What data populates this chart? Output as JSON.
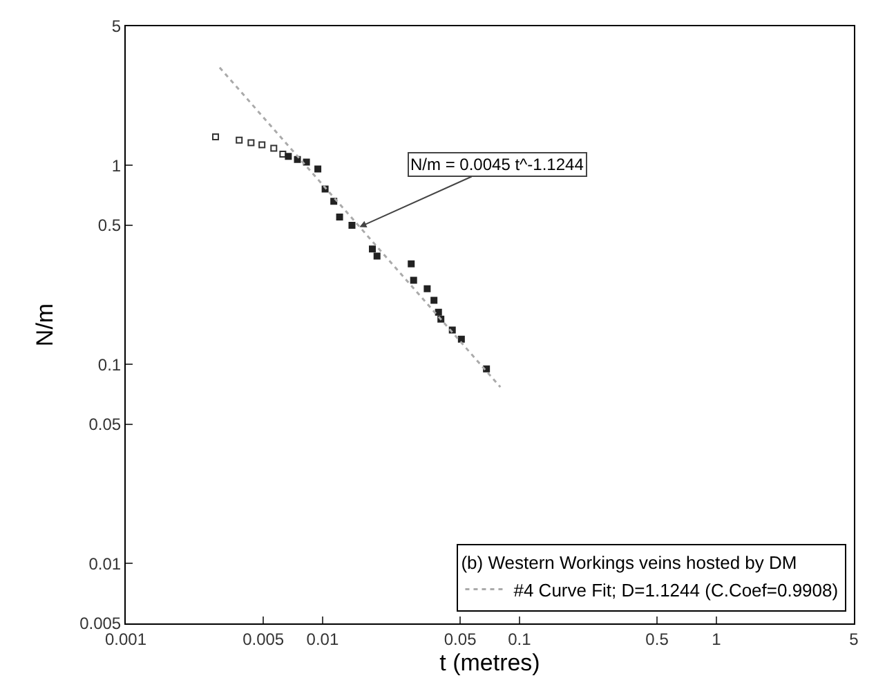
{
  "chart_data": {
    "type": "scatter",
    "xlabel": "t (metres)",
    "ylabel": "N/m",
    "legend_title": "(b) Western Workings veins hosted by DM",
    "log": "xy",
    "legend": "bottom right",
    "xlim": [
      0.001,
      5
    ],
    "xticks": [
      0.001,
      0.005,
      0.01,
      0.05,
      0.1,
      0.5,
      1,
      5
    ],
    "ylim": [
      0.005,
      5
    ],
    "yticks": [
      0.005,
      0.01,
      0.05,
      0.1,
      0.5,
      1,
      5
    ],
    "series": [
      {
        "marker": "square-open",
        "color": "#333333",
        "x": [
          0.00286,
          0.00377,
          0.00433,
          0.00492,
          0.00565,
          0.00628
        ],
        "values": [
          1.39,
          1.34,
          1.3,
          1.27,
          1.22,
          1.14
        ]
      },
      {
        "marker": "square",
        "color": "#222222",
        "x": [
          0.0067,
          0.00745,
          0.00828,
          0.00946,
          0.0103,
          0.0114,
          0.0122,
          0.0141,
          0.0179,
          0.0189,
          0.0282,
          0.029,
          0.034,
          0.0368,
          0.0388,
          0.0399,
          0.0456,
          0.0507,
          0.068
        ],
        "values": [
          1.11,
          1.07,
          1.04,
          0.96,
          0.76,
          0.66,
          0.55,
          0.5,
          0.38,
          0.35,
          0.32,
          0.265,
          0.24,
          0.21,
          0.183,
          0.169,
          0.149,
          0.134,
          0.095
        ]
      },
      {
        "type": "line",
        "name": "#4 Curve Fit; D=1.1244 (C.Coef=0.9908)",
        "color": "#aaaaaa",
        "line_style": "dotted",
        "marker": "none",
        "x": [
          0.003,
          0.08
        ],
        "values": [
          3.1,
          0.077
        ]
      }
    ],
    "annotations": [
      {
        "text": "N/m = 0.0045 t^-1.1244",
        "x": 0.0154,
        "y": 0.49
      }
    ]
  }
}
